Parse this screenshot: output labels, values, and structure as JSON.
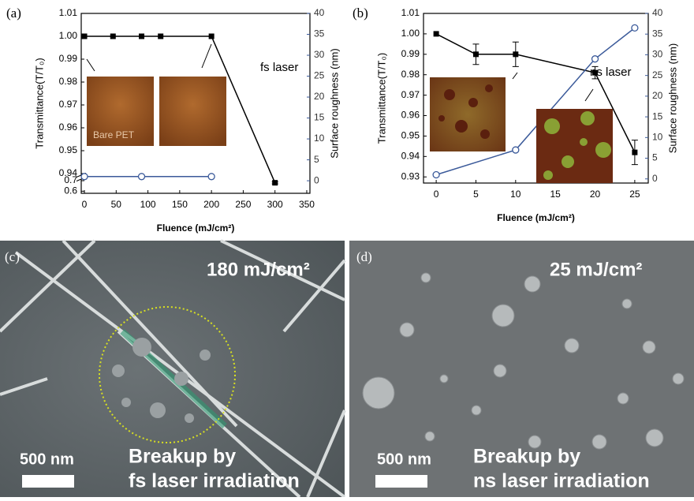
{
  "chart_data": [
    {
      "type": "line",
      "panel_label": "(a)",
      "xlabel": "Fluence (mJ/cm²)",
      "ylabel": "Transmittance(T/T₀)",
      "y2label": "Surface roughness (nm)",
      "xlim": [
        -5,
        355
      ],
      "xticks": [
        0,
        50,
        100,
        150,
        200,
        250,
        300,
        350
      ],
      "ylim": [
        0.58,
        1.01
      ],
      "y_break": [
        0.7,
        0.94
      ],
      "yticks": [
        0.6,
        0.7,
        0.94,
        0.95,
        0.96,
        0.97,
        0.98,
        0.99,
        {
          "value": 1,
          "label": "1.00"
        },
        1.01
      ],
      "y2lim": [
        -3,
        40
      ],
      "y2ticks": [
        0,
        5,
        10,
        15,
        20,
        25,
        30,
        35,
        40
      ],
      "series": [
        {
          "color": "#000000",
          "marker": "square",
          "x": [
            0,
            45,
            90,
            120,
            200,
            300
          ],
          "values": [
            1,
            1,
            1,
            1,
            1,
            0.68
          ],
          "errors": [
            null,
            null,
            null,
            null,
            null,
            0.01
          ]
        },
        {
          "color": "#3b5a9a",
          "marker": "open-circle",
          "axis": "y2",
          "x": [
            0,
            90,
            200
          ],
          "values": [
            1,
            1,
            1
          ]
        }
      ],
      "annotation": "fs laser",
      "inset_label": "Bare PET"
    },
    {
      "type": "line",
      "panel_label": "(b)",
      "xlabel": "Fluence (mJ/cm²)",
      "ylabel": "Transmittance(T/T₀)",
      "y2label": "Surface roughness (nm)",
      "xlim": [
        -1.6,
        26.7
      ],
      "xticks": [
        0,
        5,
        10,
        15,
        20,
        25
      ],
      "ylim": [
        0.927,
        1.01
      ],
      "yticks": [
        0.93,
        0.94,
        0.95,
        0.96,
        0.97,
        0.98,
        0.99,
        {
          "value": 1,
          "label": "1.00"
        },
        1.01
      ],
      "y2lim": [
        -1,
        40
      ],
      "y2ticks": [
        0,
        5,
        10,
        15,
        20,
        25,
        30,
        35,
        40
      ],
      "series": [
        {
          "color": "#000000",
          "marker": "square",
          "x": [
            0,
            5,
            10,
            20,
            25
          ],
          "values": [
            1,
            0.99,
            0.99,
            0.981,
            0.942
          ],
          "errors": [
            null,
            0.005,
            0.006,
            0.003,
            0.006
          ]
        },
        {
          "color": "#3b5a9a",
          "marker": "open-circle",
          "axis": "y2",
          "x": [
            0,
            10,
            20,
            25
          ],
          "values": [
            1,
            7,
            29,
            36.5
          ]
        }
      ],
      "annotation": "ns laser"
    }
  ],
  "images": [
    {
      "label": "(c)",
      "fluence": "180 mJ/cm²",
      "scale_bar": "500 nm",
      "caption": [
        "Breakup by",
        "fs laser irradiation"
      ]
    },
    {
      "label": "(d)",
      "fluence": "25 mJ/cm²",
      "scale_bar": "500 nm",
      "caption": [
        "Breakup by",
        "ns laser irradiation"
      ]
    }
  ]
}
